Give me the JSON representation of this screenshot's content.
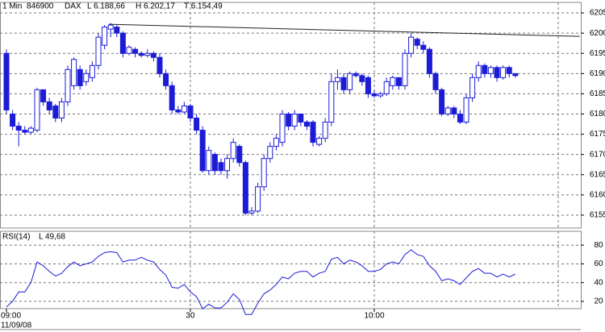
{
  "chart_data": [
    {
      "type": "candlestick",
      "header": [
        "1 Min",
        "846900",
        "DAX",
        "L 6.188,66",
        "H 6.202,17",
        "T 6.154,49"
      ],
      "x": [
        0,
        1,
        2,
        3,
        4,
        5,
        6,
        7,
        8,
        9,
        10,
        11,
        12,
        13,
        14,
        15,
        16,
        17,
        18,
        19,
        20,
        21,
        22,
        23,
        24,
        25,
        26,
        27,
        28,
        29,
        30,
        31,
        32,
        33,
        34,
        35,
        36,
        37,
        38,
        39,
        40,
        41,
        42,
        43,
        44,
        45,
        46,
        47,
        48,
        49,
        50,
        51,
        52,
        53,
        54,
        55,
        56,
        57,
        58,
        59,
        60,
        61,
        62,
        63,
        64,
        65,
        66,
        67,
        68,
        69,
        70,
        71,
        72,
        73,
        74,
        75,
        76,
        77,
        78,
        79,
        80,
        81,
        82,
        83
      ],
      "open": [
        6195,
        6180,
        6177,
        6176,
        6175.5,
        6176,
        6186,
        6183,
        6182,
        6179,
        6183,
        6187,
        6191,
        6188,
        6189,
        6192,
        6197,
        6201,
        6201.5,
        6200,
        6195,
        6196,
        6195,
        6194.5,
        6195,
        6194,
        6190,
        6187,
        6181,
        6180.5,
        6182,
        6179,
        6176,
        6166,
        6170,
        6168,
        6166,
        6169,
        6172,
        6168,
        6155.5,
        6156,
        6162,
        6169,
        6172,
        6173,
        6180,
        6177,
        6180,
        6178,
        6178,
        6172.5,
        6174,
        6178,
        6188,
        6189,
        6186,
        6190,
        6189.5,
        6189,
        6185,
        6184.5,
        6185,
        6187,
        6189,
        6187,
        6195,
        6198.5,
        6197,
        6196,
        6190,
        6186,
        6180,
        6181.5,
        6180,
        6178,
        6184,
        6189,
        6192,
        6190,
        6191.5,
        6189,
        6191.5,
        6190
      ],
      "high": [
        6196,
        6181,
        6178,
        6177,
        6177,
        6186.5,
        6186,
        6184,
        6182.5,
        6184,
        6192,
        6194,
        6192,
        6191,
        6193,
        6200,
        6202,
        6202.5,
        6202,
        6200.5,
        6197,
        6196.5,
        6195.5,
        6196,
        6195.5,
        6195,
        6191,
        6188,
        6182,
        6183,
        6182.5,
        6180,
        6177,
        6172,
        6170.5,
        6169,
        6170,
        6174,
        6172.5,
        6168.5,
        6157,
        6163,
        6170,
        6173,
        6175,
        6181,
        6180.5,
        6181,
        6180,
        6178.5,
        6178.5,
        6174.5,
        6179,
        6190,
        6191,
        6190,
        6190.5,
        6190.5,
        6190,
        6189.5,
        6186,
        6185.5,
        6189,
        6189.5,
        6189,
        6196,
        6200,
        6199,
        6198,
        6196.5,
        6190.5,
        6186.5,
        6182,
        6182,
        6181,
        6185,
        6190,
        6193,
        6192.5,
        6192,
        6192,
        6192,
        6192,
        6190
      ],
      "low": [
        6180,
        6176,
        6172,
        6175,
        6175,
        6175.5,
        6182,
        6180,
        6178,
        6178,
        6182,
        6186,
        6186,
        6187,
        6188,
        6191,
        6196,
        6199,
        6199,
        6194,
        6194.5,
        6194,
        6194,
        6194,
        6193,
        6189,
        6186,
        6180,
        6180,
        6180,
        6178,
        6175,
        6165.5,
        6165,
        6165,
        6165,
        6164,
        6168,
        6167,
        6155,
        6155,
        6155.5,
        6161,
        6168,
        6171,
        6172,
        6176,
        6176,
        6177,
        6176,
        6172,
        6172,
        6173,
        6177,
        6186,
        6185,
        6185,
        6189,
        6187,
        6184,
        6184,
        6184,
        6184.5,
        6186,
        6186,
        6186,
        6194,
        6196,
        6195,
        6189,
        6185,
        6179.5,
        6179.5,
        6179,
        6177.5,
        6177.5,
        6183,
        6188,
        6189,
        6189,
        6188,
        6188.5,
        6189,
        6189
      ],
      "close": [
        6181,
        6177,
        6176,
        6175.5,
        6176.5,
        6186,
        6183,
        6181,
        6179,
        6183,
        6191,
        6193.5,
        6187,
        6190,
        6192,
        6199,
        6201.5,
        6202,
        6200,
        6195,
        6196.5,
        6195,
        6194.5,
        6195,
        6194,
        6190,
        6187,
        6181,
        6180.5,
        6182,
        6179,
        6176,
        6166,
        6171,
        6166,
        6166,
        6169,
        6173,
        6168,
        6155.5,
        6156,
        6162,
        6169,
        6172,
        6174,
        6180,
        6177,
        6180,
        6178,
        6177,
        6173,
        6174,
        6178,
        6188,
        6189,
        6186,
        6190,
        6189.5,
        6188,
        6185,
        6184.5,
        6185,
        6188,
        6189,
        6187,
        6195,
        6199,
        6197,
        6196,
        6190,
        6186,
        6180,
        6181.5,
        6180,
        6178,
        6184,
        6189,
        6192,
        6190,
        6191.5,
        6189,
        6191.5,
        6190,
        6189.5
      ],
      "up_color": "#ffffff",
      "down_color": "#1c1cd6",
      "edge_color": "#1c1cd6",
      "trendline": {
        "x": [
          16.7,
          93.5
        ],
        "y": [
          6202.2,
          6199.2
        ]
      },
      "xlim": [
        -1.05,
        93.68
      ],
      "ylim": [
        6151.8,
        6207.6
      ],
      "yticks": [
        6155,
        6160,
        6165,
        6170,
        6175,
        6180,
        6185,
        6190,
        6195,
        6200,
        6205
      ],
      "xgrid": [
        30,
        60,
        90
      ],
      "grid": true
    },
    {
      "type": "line",
      "label": "RSI(14)",
      "last_label": "L 49,68",
      "date": "11/09/08",
      "x": [
        0,
        1,
        2,
        3,
        4,
        5,
        6,
        7,
        8,
        9,
        10,
        11,
        12,
        13,
        14,
        15,
        16,
        17,
        18,
        19,
        20,
        21,
        22,
        23,
        24,
        25,
        26,
        27,
        28,
        29,
        30,
        31,
        32,
        33,
        34,
        35,
        36,
        37,
        38,
        39,
        40,
        41,
        42,
        43,
        44,
        45,
        46,
        47,
        48,
        49,
        50,
        51,
        52,
        53,
        54,
        55,
        56,
        57,
        58,
        59,
        60,
        61,
        62,
        63,
        64,
        65,
        66,
        67,
        68,
        69,
        70,
        71,
        72,
        73,
        74,
        75,
        76,
        77,
        78,
        79,
        80,
        81,
        82,
        83
      ],
      "values": [
        14,
        20,
        30,
        30,
        40,
        62,
        58,
        52,
        47,
        50,
        57,
        62,
        58,
        60,
        62,
        68,
        72,
        73,
        72,
        62,
        64,
        64,
        67,
        64,
        62,
        54,
        48,
        35,
        34,
        38,
        30,
        25,
        12,
        17,
        13,
        13,
        19,
        28,
        22,
        6,
        6,
        18,
        28,
        32,
        38,
        46,
        44,
        50,
        52,
        52,
        46,
        50,
        52,
        65,
        67,
        60,
        64,
        62,
        58,
        52,
        52,
        54,
        60,
        62,
        60,
        70,
        75,
        70,
        68,
        58,
        52,
        42,
        44,
        42,
        38,
        45,
        52,
        55,
        50,
        50,
        46,
        49,
        46,
        49
      ],
      "color": "#1c1cd6",
      "xlim": [
        -1.05,
        93.68
      ],
      "ylim": [
        12.2,
        94.8
      ],
      "yticks": [
        20,
        40,
        60,
        80
      ],
      "xticks": [
        {
          "value": 0,
          "label": "09:00"
        },
        {
          "value": 30,
          "label": "30"
        },
        {
          "value": 60,
          "label": "10:00"
        }
      ],
      "xgrid": [
        30,
        60,
        90
      ],
      "grid": true
    }
  ]
}
